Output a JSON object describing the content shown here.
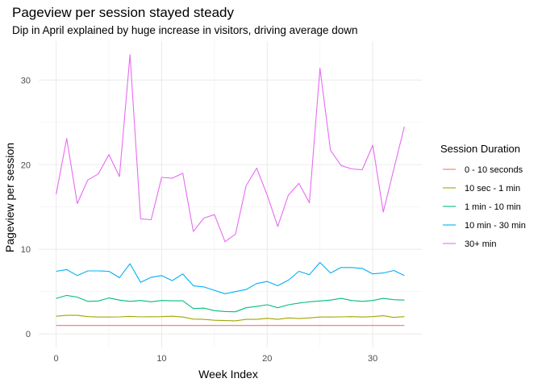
{
  "chart_data": {
    "type": "line",
    "title": "Pageview per session stayed steady",
    "subtitle": "Dip in April explained by huge increase in visitors, driving average down",
    "xlabel": "Week Index",
    "ylabel": "Pageview per session",
    "xlim": [
      -1.65,
      34.65
    ],
    "ylim": [
      -1.6,
      34.6
    ],
    "x_ticks": [
      0,
      10,
      20,
      30
    ],
    "y_ticks": [
      0,
      10,
      20,
      30
    ],
    "grid": true,
    "legend": {
      "title": "Session Duration",
      "position": "right"
    },
    "x": [
      0,
      1,
      2,
      3,
      4,
      5,
      6,
      7,
      8,
      9,
      10,
      11,
      12,
      13,
      14,
      15,
      16,
      17,
      18,
      19,
      20,
      21,
      22,
      23,
      24,
      25,
      26,
      27,
      28,
      29,
      30,
      31,
      32,
      33
    ],
    "series": [
      {
        "name": "0 - 10 seconds",
        "color": "#F8766D",
        "values": [
          1,
          1,
          1,
          1,
          1,
          1,
          1,
          1,
          1,
          1,
          1,
          1,
          1,
          1,
          1,
          1,
          1,
          1,
          1,
          1,
          1,
          1,
          1,
          1,
          1,
          1,
          1,
          1,
          1,
          1,
          1,
          1,
          1,
          1
        ]
      },
      {
        "name": "10 sec - 1 min",
        "color": "#A3A500",
        "values": [
          2.1,
          2.2,
          2.2,
          2.05,
          2.0,
          2.0,
          2.02,
          2.08,
          2.02,
          2.04,
          2.05,
          2.1,
          2.0,
          1.75,
          1.72,
          1.62,
          1.58,
          1.55,
          1.72,
          1.72,
          1.85,
          1.72,
          1.9,
          1.82,
          1.9,
          2.0,
          2.0,
          2.02,
          2.05,
          2.0,
          2.05,
          2.15,
          1.95,
          2.05
        ]
      },
      {
        "name": "1 min - 10 min",
        "color": "#00BF7D",
        "values": [
          4.2,
          4.55,
          4.35,
          3.85,
          3.9,
          4.25,
          4.0,
          3.85,
          3.95,
          3.8,
          3.95,
          3.92,
          3.92,
          3.0,
          3.05,
          2.75,
          2.65,
          2.62,
          3.1,
          3.25,
          3.45,
          3.1,
          3.45,
          3.65,
          3.8,
          3.9,
          4.0,
          4.2,
          3.95,
          3.85,
          3.95,
          4.2,
          4.05,
          4.0
        ]
      },
      {
        "name": "10 min - 30 min",
        "color": "#00B0F6",
        "values": [
          7.4,
          7.6,
          6.9,
          7.45,
          7.45,
          7.4,
          6.65,
          8.3,
          6.1,
          6.7,
          6.9,
          6.3,
          7.1,
          5.7,
          5.55,
          5.15,
          4.75,
          5.0,
          5.25,
          5.95,
          6.2,
          5.7,
          6.35,
          7.4,
          7.0,
          8.45,
          7.2,
          7.85,
          7.85,
          7.75,
          7.1,
          7.2,
          7.5,
          6.9
        ]
      },
      {
        "name": "30+ min",
        "color": "#E76BF3",
        "values": [
          16.5,
          23.1,
          15.4,
          18.2,
          18.9,
          21.2,
          18.6,
          33.0,
          13.6,
          13.5,
          18.5,
          18.4,
          19.0,
          12.1,
          13.7,
          14.1,
          10.9,
          11.8,
          17.5,
          19.6,
          16.4,
          12.7,
          16.4,
          17.8,
          15.5,
          31.4,
          21.7,
          19.9,
          19.5,
          19.4,
          22.3,
          14.4,
          19.5,
          24.5
        ]
      }
    ]
  }
}
